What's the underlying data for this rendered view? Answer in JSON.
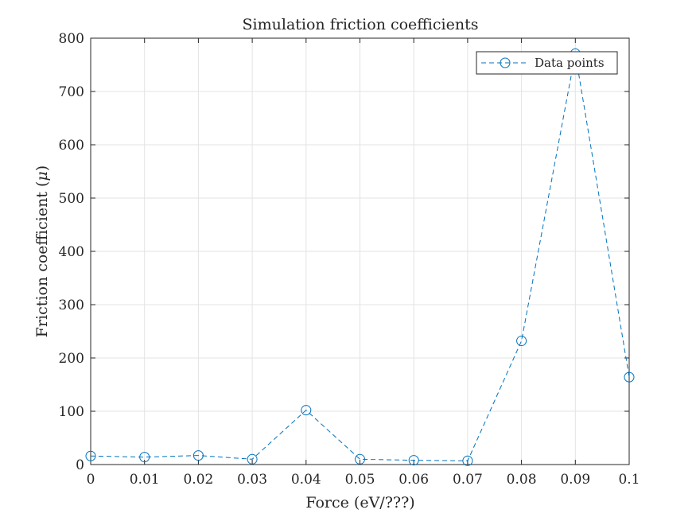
{
  "chart_data": {
    "type": "line",
    "title": "Simulation friction coefficients",
    "xlabel": "Force (eV/???)",
    "ylabel_text": "Friction coefficient (",
    "ylabel_symbol": "μ",
    "ylabel_close": ")",
    "xlim": [
      0,
      0.1
    ],
    "ylim": [
      0,
      800
    ],
    "x_ticks": [
      0,
      0.01,
      0.02,
      0.03,
      0.04,
      0.05,
      0.06,
      0.07,
      0.08,
      0.09,
      0.1
    ],
    "x_tick_labels": [
      "0",
      "0.01",
      "0.02",
      "0.03",
      "0.04",
      "0.05",
      "0.06",
      "0.07",
      "0.08",
      "0.09",
      "0.1"
    ],
    "y_ticks": [
      0,
      100,
      200,
      300,
      400,
      500,
      600,
      700,
      800
    ],
    "y_tick_labels": [
      "0",
      "100",
      "200",
      "300",
      "400",
      "500",
      "600",
      "700",
      "800"
    ],
    "grid": true,
    "legend_position": "top-right",
    "series": [
      {
        "name": "Data points",
        "color": "#0072BD",
        "line_style": "dashed",
        "marker": "circle",
        "x": [
          0,
          0.01,
          0.02,
          0.03,
          0.04,
          0.05,
          0.06,
          0.07,
          0.08,
          0.09,
          0.1
        ],
        "y": [
          16,
          14,
          17,
          10,
          102,
          10,
          8,
          7,
          232,
          771,
          164
        ]
      }
    ]
  }
}
